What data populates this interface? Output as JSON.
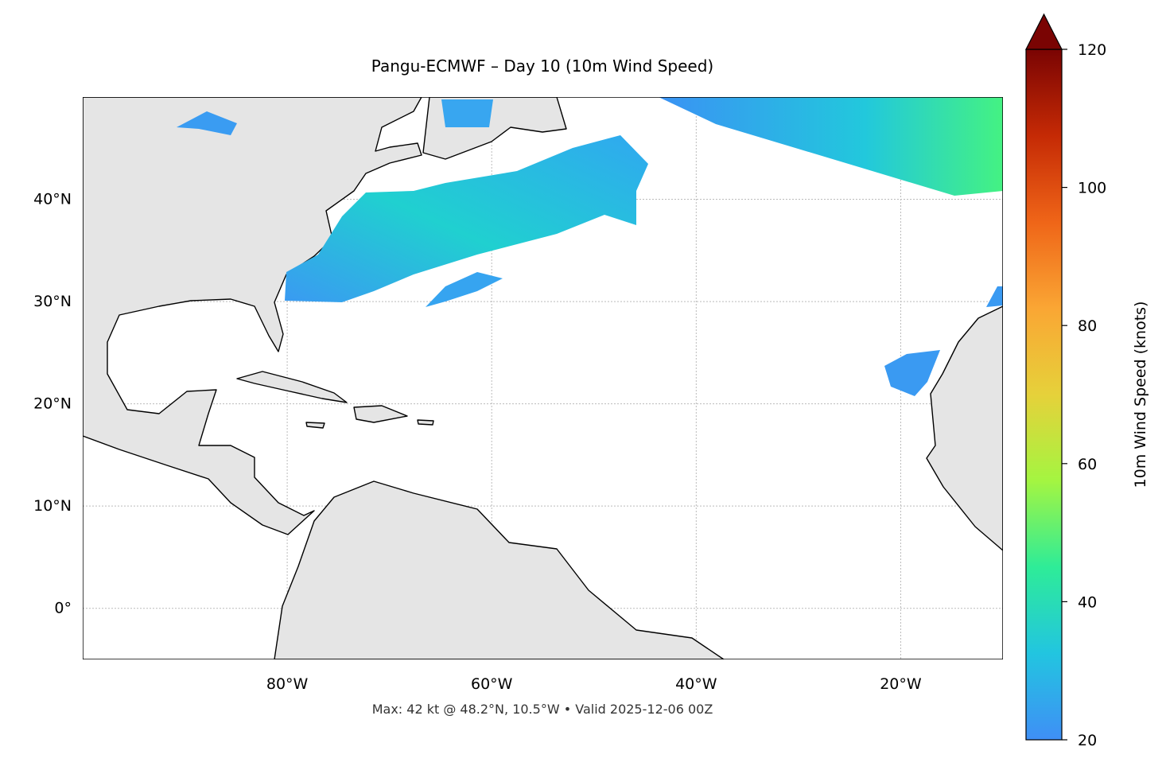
{
  "map": {
    "title": "Pangu-ECMWF – Day 10 (10m Wind Speed)",
    "footer": "Max: 42 kt @ 48.2°N, 10.5°W • Valid 2025-12-06 00Z",
    "xlim": [
      -100,
      -10
    ],
    "ylim": [
      -5,
      50
    ],
    "xticks": [
      {
        "value": -80,
        "label": "80°W"
      },
      {
        "value": -60,
        "label": "60°W"
      },
      {
        "value": -40,
        "label": "40°W"
      },
      {
        "value": -20,
        "label": "20°W"
      }
    ],
    "yticks": [
      {
        "value": 0,
        "label": "0°"
      },
      {
        "value": 10,
        "label": "10°N"
      },
      {
        "value": 20,
        "label": "20°N"
      },
      {
        "value": 30,
        "label": "30°N"
      },
      {
        "value": 40,
        "label": "40°N"
      }
    ],
    "grid": true,
    "colorbar": {
      "label": "10m Wind Speed (knots)",
      "lim": [
        20,
        120
      ],
      "ticks": [
        20,
        40,
        60,
        80,
        100,
        120
      ],
      "colors": [
        "#3f8ff6",
        "#22c5e0",
        "#2eec98",
        "#a4f541",
        "#e6d13a",
        "#faa634",
        "#ef6518",
        "#c52a05",
        "#7a0403"
      ]
    }
  }
}
